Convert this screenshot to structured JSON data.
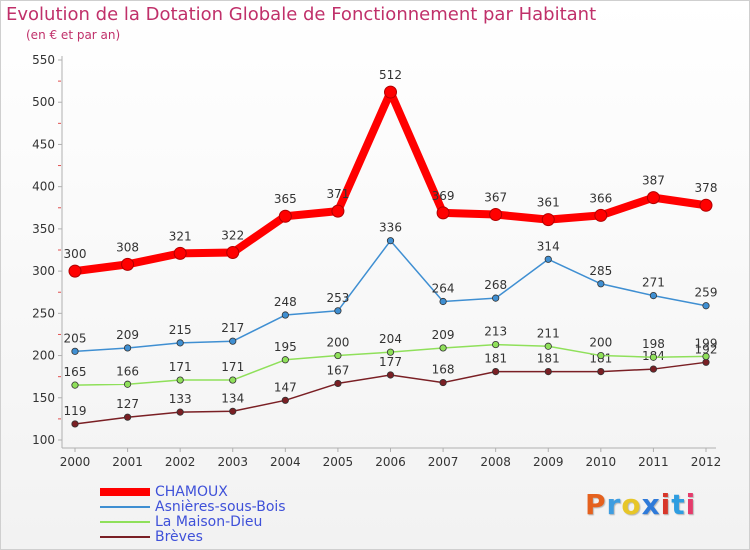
{
  "header": {
    "title": "Evolution de la Dotation Globale de Fonctionnement par Habitant",
    "subtitle": "(en € et par an)"
  },
  "brand": {
    "text": "Proxiti",
    "colors": [
      "#e5611e",
      "#3f9de0",
      "#e7c628",
      "#2f7ad9",
      "#d8372a",
      "#2f9de0",
      "#e53b6b"
    ]
  },
  "chart_data": {
    "type": "line",
    "title": "Evolution de la Dotation Globale de Fonctionnement par Habitant",
    "subtitle": "(en € et par an)",
    "x": [
      "2000",
      "2001",
      "2002",
      "2003",
      "2004",
      "2005",
      "2006",
      "2007",
      "2008",
      "2009",
      "2010",
      "2011",
      "2012"
    ],
    "ylim": [
      100,
      550
    ],
    "yticks": [
      100,
      150,
      200,
      250,
      300,
      350,
      400,
      450,
      500,
      550
    ],
    "grid": false,
    "legend_position": "bottom-left",
    "series": [
      {
        "name": "CHAMOUX",
        "color": "#ff0000",
        "values": [
          300,
          308,
          321,
          322,
          365,
          371,
          512,
          369,
          367,
          361,
          366,
          387,
          378
        ],
        "emphasis": true
      },
      {
        "name": "Asnières-sous-Bois",
        "color": "#3f8fd2",
        "values": [
          205,
          209,
          215,
          217,
          248,
          253,
          336,
          264,
          268,
          314,
          285,
          271,
          259
        ]
      },
      {
        "name": "La Maison-Dieu",
        "color": "#8fe05a",
        "values": [
          165,
          166,
          171,
          171,
          195,
          200,
          204,
          209,
          213,
          211,
          200,
          198,
          199
        ]
      },
      {
        "name": "Brèves",
        "color": "#7a1f24",
        "values": [
          119,
          127,
          133,
          134,
          147,
          167,
          177,
          168,
          181,
          181,
          181,
          184,
          192
        ]
      }
    ]
  }
}
